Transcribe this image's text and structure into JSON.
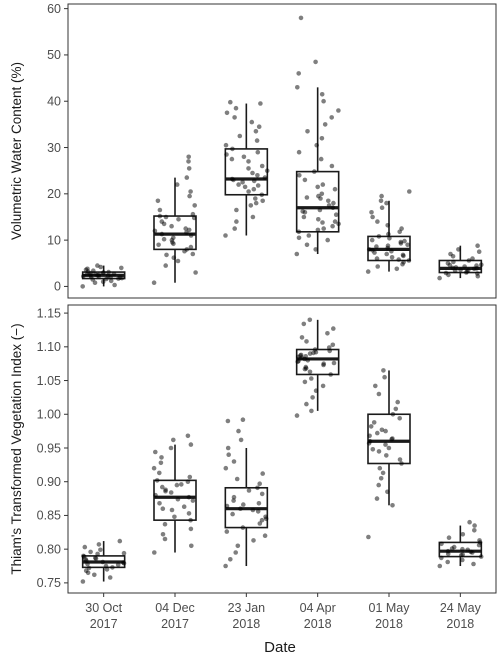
{
  "chart_data": [
    {
      "type": "boxplot",
      "xlabel": "Date",
      "ylabel": "Volumetric Water Content (%)",
      "ylim": [
        -2.5,
        61
      ],
      "yticks": [
        0,
        10,
        20,
        30,
        40,
        50,
        60
      ],
      "categories": [
        {
          "line1": "30 Oct",
          "line2": "2017"
        },
        {
          "line1": "04 Dec",
          "line2": "2017"
        },
        {
          "line1": "23 Jan",
          "line2": "2018"
        },
        {
          "line1": "04 Apr",
          "line2": "2018"
        },
        {
          "line1": "01 May",
          "line2": "2018"
        },
        {
          "line1": "24 May",
          "line2": "2018"
        }
      ],
      "boxes": [
        {
          "whisker_low": 0.0,
          "q1": 1.7,
          "median": 2.4,
          "q3": 3.1,
          "whisker_high": 4.5,
          "points": [
            0.0,
            0.3,
            0.8,
            1.0,
            1.2,
            1.5,
            1.6,
            1.7,
            1.9,
            2.0,
            2.1,
            2.2,
            2.3,
            2.4,
            2.4,
            2.5,
            2.6,
            2.7,
            2.8,
            2.9,
            3.0,
            3.1,
            3.2,
            3.4,
            3.6,
            3.8,
            4.0,
            4.2,
            4.5,
            2.2,
            2.6,
            1.8
          ]
        },
        {
          "whisker_low": 0.8,
          "q1": 8.0,
          "median": 11.3,
          "q3": 15.2,
          "whisker_high": 23.5,
          "points": [
            0.8,
            3.0,
            4.5,
            5.5,
            6.2,
            7.0,
            7.6,
            8.0,
            8.5,
            9.0,
            9.5,
            10.0,
            10.5,
            11.0,
            11.3,
            11.6,
            12.0,
            12.5,
            13.0,
            13.5,
            14.0,
            14.5,
            15.0,
            15.2,
            15.6,
            16.5,
            17.5,
            18.5,
            19.5,
            20.5,
            22.0,
            23.5,
            25.5,
            27.0,
            28.0,
            12.2,
            10.2,
            9.2,
            14.8,
            6.8
          ]
        },
        {
          "whisker_low": 11.0,
          "q1": 19.8,
          "median": 23.2,
          "q3": 29.7,
          "whisker_high": 39.5,
          "points": [
            11.0,
            12.5,
            14.0,
            15.0,
            16.5,
            17.5,
            18.5,
            19.0,
            19.8,
            20.5,
            21.0,
            21.5,
            22.0,
            22.5,
            23.0,
            23.2,
            23.5,
            24.0,
            24.5,
            25.0,
            26.0,
            27.0,
            28.0,
            28.5,
            29.0,
            29.7,
            30.5,
            31.5,
            32.5,
            33.5,
            34.5,
            35.5,
            36.5,
            37.5,
            38.5,
            39.5,
            39.8,
            25.5,
            21.8,
            27.5,
            22.8,
            18.0
          ]
        },
        {
          "whisker_low": 7.0,
          "q1": 11.8,
          "median": 17.0,
          "q3": 24.8,
          "whisker_high": 43.0,
          "points": [
            7.0,
            8.0,
            9.0,
            10.0,
            10.5,
            11.0,
            11.8,
            12.5,
            13.0,
            13.5,
            14.0,
            14.5,
            15.0,
            15.5,
            16.0,
            16.5,
            17.0,
            17.5,
            18.0,
            18.5,
            19.0,
            19.5,
            20.0,
            21.0,
            22.0,
            23.0,
            24.0,
            24.8,
            26.0,
            27.5,
            29.0,
            30.5,
            32.0,
            33.5,
            35.0,
            36.5,
            38.0,
            40.0,
            41.5,
            43.0,
            46.0,
            48.5,
            58.0,
            16.2,
            19.2,
            13.8,
            21.5,
            12.2
          ]
        },
        {
          "whisker_low": 3.2,
          "q1": 5.6,
          "median": 8.0,
          "q3": 10.8,
          "whisker_high": 18.5,
          "points": [
            3.2,
            3.8,
            4.3,
            4.8,
            5.2,
            5.6,
            6.0,
            6.3,
            6.6,
            7.0,
            7.3,
            7.6,
            8.0,
            8.3,
            8.6,
            9.0,
            9.3,
            9.6,
            10.0,
            10.4,
            10.8,
            11.3,
            11.8,
            12.5,
            13.2,
            14.0,
            15.0,
            16.0,
            17.0,
            18.0,
            18.5,
            19.5,
            20.5,
            8.8,
            7.8,
            6.8,
            9.8,
            5.8
          ]
        },
        {
          "whisker_low": 1.8,
          "q1": 3.0,
          "median": 3.9,
          "q3": 5.6,
          "whisker_high": 8.8,
          "points": [
            1.8,
            2.2,
            2.5,
            2.8,
            3.0,
            3.2,
            3.4,
            3.6,
            3.8,
            3.9,
            4.1,
            4.3,
            4.5,
            4.7,
            5.0,
            5.3,
            5.6,
            6.0,
            6.5,
            7.0,
            7.5,
            8.0,
            8.8,
            3.5,
            4.0,
            4.6,
            2.9
          ]
        }
      ]
    },
    {
      "type": "boxplot",
      "xlabel": "Date",
      "ylabel": "Thiam's Transformed Vegetation Index (−)",
      "ylim": [
        0.735,
        1.162
      ],
      "yticks": [
        "0.75",
        "0.80",
        "0.85",
        "0.90",
        "0.95",
        "1.00",
        "1.05",
        "1.10",
        "1.15"
      ],
      "categories": [
        {
          "line1": "30 Oct",
          "line2": "2017"
        },
        {
          "line1": "04 Dec",
          "line2": "2017"
        },
        {
          "line1": "23 Jan",
          "line2": "2018"
        },
        {
          "line1": "04 Apr",
          "line2": "2018"
        },
        {
          "line1": "01 May",
          "line2": "2018"
        },
        {
          "line1": "24 May",
          "line2": "2018"
        }
      ],
      "boxes": [
        {
          "whisker_low": 0.752,
          "q1": 0.773,
          "median": 0.781,
          "q3": 0.79,
          "whisker_high": 0.812,
          "points": [
            0.752,
            0.758,
            0.762,
            0.765,
            0.768,
            0.77,
            0.773,
            0.775,
            0.777,
            0.779,
            0.781,
            0.783,
            0.785,
            0.787,
            0.789,
            0.79,
            0.793,
            0.796,
            0.799,
            0.803,
            0.807,
            0.812,
            0.78,
            0.778,
            0.786,
            0.772,
            0.794
          ]
        },
        {
          "whisker_low": 0.795,
          "q1": 0.843,
          "median": 0.877,
          "q3": 0.902,
          "whisker_high": 0.955,
          "points": [
            0.795,
            0.805,
            0.815,
            0.822,
            0.83,
            0.837,
            0.843,
            0.848,
            0.853,
            0.858,
            0.863,
            0.868,
            0.872,
            0.877,
            0.88,
            0.884,
            0.888,
            0.892,
            0.896,
            0.9,
            0.902,
            0.907,
            0.913,
            0.92,
            0.928,
            0.936,
            0.944,
            0.95,
            0.955,
            0.962,
            0.968,
            0.874,
            0.886,
            0.86,
            0.895
          ]
        },
        {
          "whisker_low": 0.775,
          "q1": 0.832,
          "median": 0.86,
          "q3": 0.891,
          "whisker_high": 0.95,
          "points": [
            0.775,
            0.785,
            0.795,
            0.805,
            0.813,
            0.82,
            0.826,
            0.832,
            0.838,
            0.843,
            0.848,
            0.852,
            0.856,
            0.86,
            0.864,
            0.868,
            0.872,
            0.877,
            0.882,
            0.887,
            0.891,
            0.897,
            0.904,
            0.912,
            0.92,
            0.93,
            0.94,
            0.95,
            0.962,
            0.975,
            0.99,
            0.992,
            0.858,
            0.866,
            0.845
          ]
        },
        {
          "whisker_low": 1.005,
          "q1": 1.059,
          "median": 1.082,
          "q3": 1.096,
          "whisker_high": 1.14,
          "points": [
            0.998,
            1.005,
            1.015,
            1.025,
            1.035,
            1.042,
            1.048,
            1.053,
            1.059,
            1.063,
            1.067,
            1.07,
            1.073,
            1.076,
            1.079,
            1.082,
            1.084,
            1.086,
            1.088,
            1.09,
            1.092,
            1.094,
            1.096,
            1.099,
            1.103,
            1.108,
            1.114,
            1.12,
            1.127,
            1.134,
            1.14,
            1.08,
            1.085,
            1.075,
            1.091,
            1.068,
            1.078,
            1.087
          ]
        },
        {
          "whisker_low": 0.865,
          "q1": 0.927,
          "median": 0.96,
          "q3": 1.0,
          "whisker_high": 1.065,
          "points": [
            0.818,
            0.865,
            0.875,
            0.885,
            0.895,
            0.905,
            0.913,
            0.92,
            0.927,
            0.933,
            0.939,
            0.945,
            0.95,
            0.955,
            0.96,
            0.964,
            0.968,
            0.972,
            0.977,
            0.982,
            0.988,
            0.994,
            1.0,
            1.008,
            1.018,
            1.03,
            1.042,
            1.055,
            1.065,
            0.957,
            0.963,
            0.948,
            0.975
          ]
        },
        {
          "whisker_low": 0.775,
          "q1": 0.789,
          "median": 0.797,
          "q3": 0.81,
          "whisker_high": 0.835,
          "points": [
            0.775,
            0.778,
            0.781,
            0.784,
            0.787,
            0.789,
            0.791,
            0.793,
            0.795,
            0.797,
            0.799,
            0.801,
            0.803,
            0.806,
            0.808,
            0.81,
            0.813,
            0.817,
            0.822,
            0.828,
            0.835,
            0.84,
            0.796,
            0.8,
            0.792
          ]
        }
      ]
    }
  ]
}
